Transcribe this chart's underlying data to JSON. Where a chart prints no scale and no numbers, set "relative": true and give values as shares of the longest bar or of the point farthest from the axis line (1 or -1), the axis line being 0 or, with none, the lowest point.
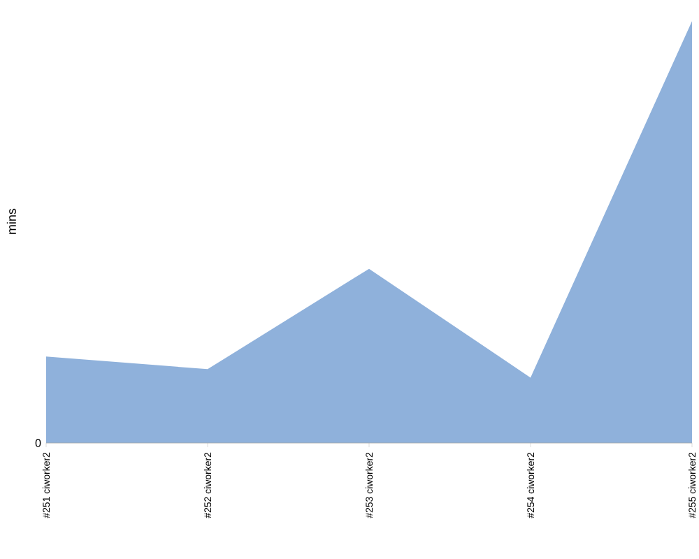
{
  "chart_data": {
    "type": "area",
    "ylabel": "mins",
    "relative": true,
    "annotations": [
      "0"
    ],
    "categories": [
      "#251 ciworker2",
      "#252 ciworker2",
      "#253 ciworker2",
      "#254 ciworker2",
      "#255 ciworker2"
    ],
    "series": [
      {
        "color": "#8fb1db",
        "values": [
          0.205,
          0.175,
          0.413,
          0.155,
          1
        ]
      }
    ],
    "grid": false
  }
}
